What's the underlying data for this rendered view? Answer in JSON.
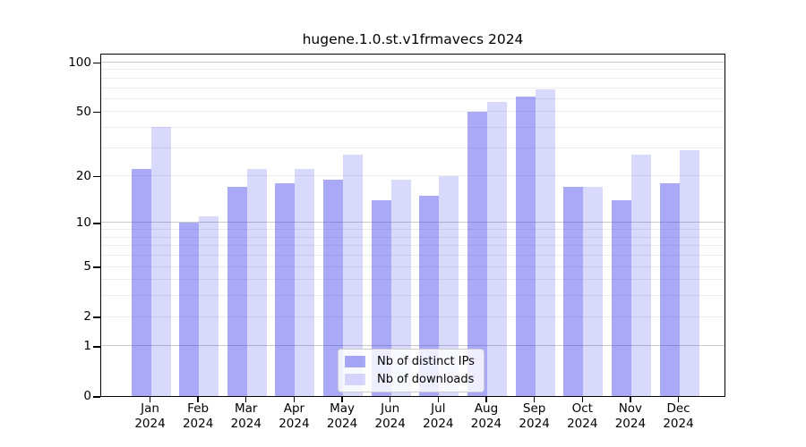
{
  "title": "hugene.1.0.st.v1frmavecs 2024",
  "chart_data": {
    "type": "bar",
    "title": "hugene.1.0.st.v1frmavecs 2024",
    "categories": [
      "Jan",
      "Feb",
      "Mar",
      "Apr",
      "May",
      "Jun",
      "Jul",
      "Aug",
      "Sep",
      "Oct",
      "Nov",
      "Dec"
    ],
    "x_tick_second_line": "2024",
    "series": [
      {
        "name": "Nb of distinct IPs",
        "color": "rgba(64,64,240,0.45)",
        "values": [
          22,
          10,
          17,
          18,
          19,
          14,
          15,
          50,
          62,
          17,
          14,
          18
        ]
      },
      {
        "name": "Nb of downloads",
        "color": "rgba(64,64,240,0.20)",
        "values": [
          40,
          11,
          22,
          22,
          27,
          19,
          20,
          57,
          68,
          17,
          27,
          29
        ]
      }
    ],
    "yscale": "log1p",
    "ylim": [
      0,
      114
    ],
    "yticks": [
      0,
      1,
      2,
      5,
      10,
      20,
      50,
      100
    ],
    "grid": {
      "minor_values": [
        2,
        3,
        4,
        5,
        6,
        7,
        8,
        9,
        20,
        30,
        40,
        50,
        60,
        70,
        80,
        90
      ],
      "major_values": [
        1,
        10,
        100
      ],
      "minor_color": "#ececec",
      "major_color": "#c9c9c9"
    },
    "legend": {
      "position": "bottom-center"
    }
  },
  "colors": {
    "background": "#ffffff",
    "spine": "#000000",
    "text": "#000000"
  }
}
